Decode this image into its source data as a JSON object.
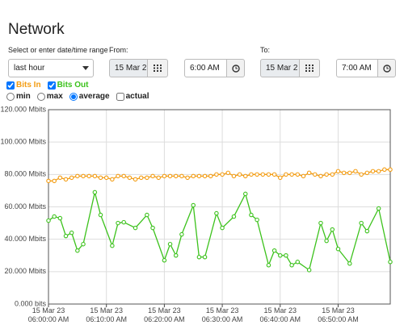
{
  "header": {
    "title": "Network"
  },
  "range": {
    "label": "Select or enter date/time range",
    "selected": "last hour"
  },
  "from": {
    "label": "From:",
    "date": "15 Mar 2",
    "time": "6:00 AM"
  },
  "to": {
    "label": "To:",
    "date": "15 Mar 2",
    "time": "7:00 AM"
  },
  "series_toggles": [
    {
      "checked": true
    },
    {
      "checked": true
    }
  ],
  "modes": [
    {
      "label": "min",
      "checked": false
    },
    {
      "label": "max",
      "checked": false
    },
    {
      "label": "average",
      "checked": true
    }
  ],
  "actual": {
    "label": "actual",
    "checked": false
  },
  "chart_data": {
    "type": "line",
    "grid": true,
    "xlim": [
      0,
      59
    ],
    "ylim": [
      0,
      120
    ],
    "yticks": [
      {
        "value": 0,
        "label": "0.000 bits"
      },
      {
        "value": 20,
        "label": "20.000 Mbits"
      },
      {
        "value": 40,
        "label": "40.000 Mbits"
      },
      {
        "value": 60,
        "label": "60.000 Mbits"
      },
      {
        "value": 80,
        "label": "80.000 Mbits"
      },
      {
        "value": 100,
        "label": "100.000 Mbits"
      },
      {
        "value": 120,
        "label": "120.000 Mbits"
      }
    ],
    "xticks": [
      {
        "value": 0,
        "label": "15 Mar 23\n06:00:00 AM"
      },
      {
        "value": 10,
        "label": "15 Mar 23\n06:10:00 AM"
      },
      {
        "value": 20,
        "label": "15 Mar 23\n06:20:00 AM"
      },
      {
        "value": 30,
        "label": "15 Mar 23\n06:30:00 AM"
      },
      {
        "value": 40,
        "label": "15 Mar 23\n06:40:00 AM"
      },
      {
        "value": 50,
        "label": "15 Mar 23\n06:50:00 AM"
      }
    ],
    "series": [
      {
        "name": "Bits In",
        "color": "#f39c12",
        "x": [
          0,
          1,
          2,
          3,
          4,
          5,
          6,
          7,
          8,
          9,
          10,
          11,
          12,
          13,
          14,
          15,
          16,
          17,
          18,
          19,
          20,
          21,
          22,
          23,
          24,
          25,
          26,
          27,
          28,
          29,
          30,
          31,
          32,
          33,
          34,
          35,
          36,
          37,
          38,
          39,
          40,
          41,
          42,
          43,
          44,
          45,
          46,
          47,
          48,
          49,
          50,
          51,
          52,
          53,
          54,
          55,
          56,
          57,
          58,
          59
        ],
        "values": [
          76,
          76,
          78,
          77,
          78,
          79,
          79,
          79,
          79,
          78,
          78,
          77,
          79,
          79,
          78,
          77,
          78,
          78,
          79,
          78,
          79,
          79,
          79,
          79,
          78,
          79,
          79,
          79,
          79,
          80,
          80,
          81,
          79,
          80,
          79,
          80,
          80,
          80,
          80,
          80,
          78,
          80,
          80,
          80,
          79,
          81,
          80,
          79,
          80,
          80,
          82,
          81,
          81,
          82,
          80,
          81,
          82,
          82,
          83,
          83
        ]
      },
      {
        "name": "Bits Out",
        "color": "#3cc21c",
        "x": [
          0,
          1,
          2,
          3,
          4,
          5,
          6,
          8,
          9,
          11,
          12,
          13,
          15,
          17,
          18,
          20,
          21,
          22,
          23,
          25,
          26,
          27,
          29,
          30,
          32,
          34,
          35,
          36,
          38,
          39,
          40,
          41,
          42,
          43,
          45,
          47,
          48,
          49,
          50,
          52,
          54,
          55,
          57,
          59
        ],
        "values": [
          51.5,
          54,
          53,
          42,
          44,
          33,
          37,
          69,
          55,
          36,
          50,
          50.5,
          47,
          55,
          47,
          27,
          37,
          30,
          43,
          61,
          29,
          29,
          56,
          47,
          54,
          68,
          55,
          52,
          24,
          33,
          30,
          30,
          24,
          26,
          21,
          50,
          39,
          46,
          34,
          25,
          50,
          45,
          59,
          26
        ]
      }
    ]
  }
}
